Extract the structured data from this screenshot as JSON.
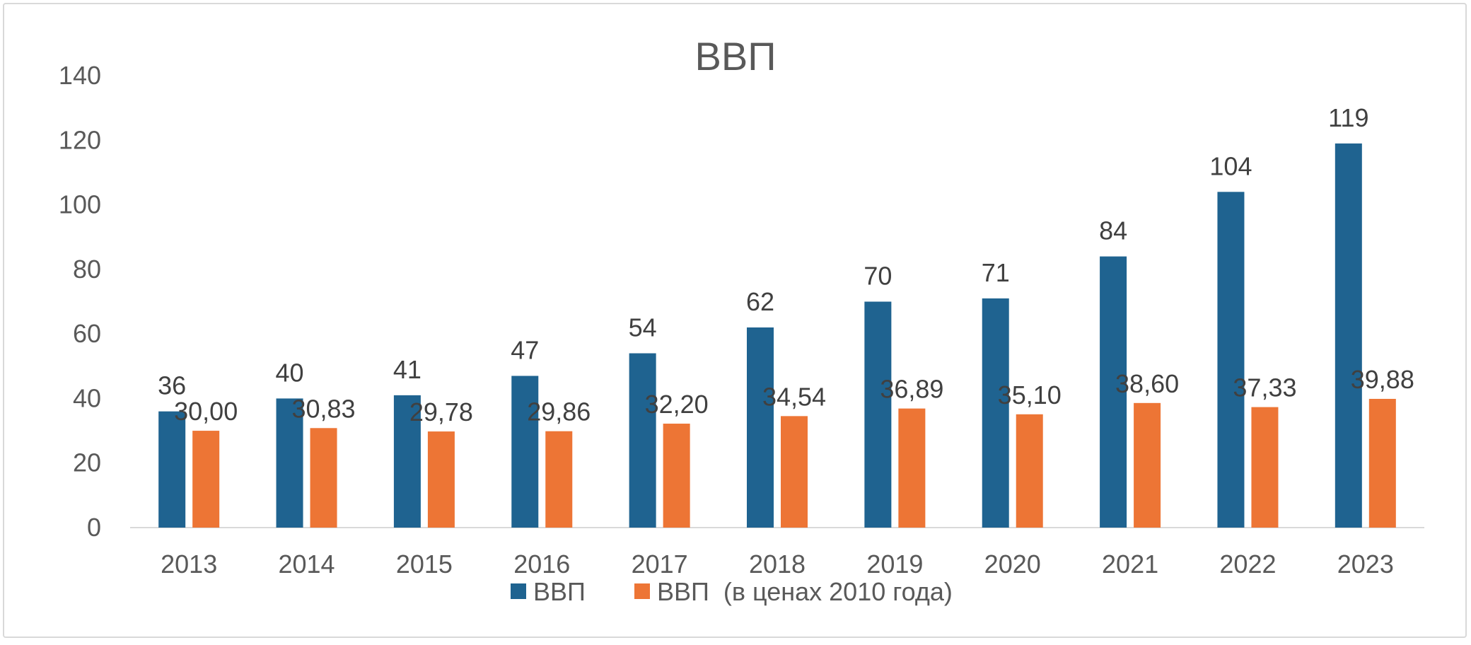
{
  "chart_data": {
    "type": "bar",
    "title": "ВВП",
    "categories": [
      "2013",
      "2014",
      "2015",
      "2016",
      "2017",
      "2018",
      "2019",
      "2020",
      "2021",
      "2022",
      "2023"
    ],
    "series": [
      {
        "name": "ВВП",
        "color": "#1f6390",
        "values": [
          36,
          40,
          41,
          47,
          54,
          62,
          70,
          71,
          84,
          104,
          119
        ],
        "labels": [
          "36",
          "40",
          "41",
          "47",
          "54",
          "62",
          "70",
          "71",
          "84",
          "104",
          "119"
        ]
      },
      {
        "name": "ВВП  (в ценах 2010 года)",
        "color": "#ed7535",
        "values": [
          30.0,
          30.83,
          29.78,
          29.86,
          32.2,
          34.54,
          36.89,
          35.1,
          38.6,
          37.33,
          39.88
        ],
        "labels": [
          "30,00",
          "30,83",
          "29,78",
          "29,86",
          "32,20",
          "34,54",
          "36,89",
          "35,10",
          "38,60",
          "37,33",
          "39,88"
        ]
      }
    ],
    "ylim": [
      0,
      140
    ],
    "yticks": [
      "0",
      "20",
      "40",
      "60",
      "80",
      "100",
      "120",
      "140"
    ],
    "grid": false,
    "legend": "bottom"
  }
}
